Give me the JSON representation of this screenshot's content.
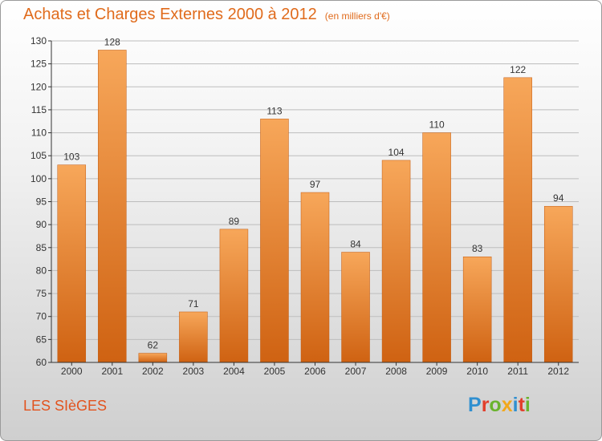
{
  "header": {
    "title": "Achats et Charges Externes 2000 à 2012",
    "unit": "(en milliers d'€)"
  },
  "footer": {
    "place": "LES SIèGES",
    "logo_text": "Proxiti",
    "logo_letters": [
      {
        "ch": "P",
        "color": "#2f8fd0"
      },
      {
        "ch": "r",
        "color": "#e23e2b"
      },
      {
        "ch": "o",
        "color": "#6ab32e"
      },
      {
        "ch": "x",
        "color": "#f2a81c"
      },
      {
        "ch": "i",
        "color": "#2f8fd0"
      },
      {
        "ch": "t",
        "color": "#e23e2b"
      },
      {
        "ch": "i",
        "color": "#6ab32e"
      }
    ]
  },
  "colors": {
    "bar_top": "#f7a75a",
    "bar_bottom": "#cf6212",
    "axis": "#333333",
    "grid": "#bdbdbd"
  },
  "chart_data": {
    "type": "bar",
    "title": "Achats et Charges Externes 2000 à 2012",
    "xlabel": "",
    "ylabel": "",
    "categories": [
      "2000",
      "2001",
      "2002",
      "2003",
      "2004",
      "2005",
      "2006",
      "2007",
      "2008",
      "2009",
      "2010",
      "2011",
      "2012"
    ],
    "values": [
      103,
      128,
      62,
      71,
      89,
      113,
      97,
      84,
      104,
      110,
      83,
      122,
      94
    ],
    "ylim": [
      60,
      130
    ],
    "yticks": [
      60,
      65,
      70,
      75,
      80,
      85,
      90,
      95,
      100,
      105,
      110,
      115,
      120,
      125,
      130
    ],
    "grid": "horizontal"
  }
}
